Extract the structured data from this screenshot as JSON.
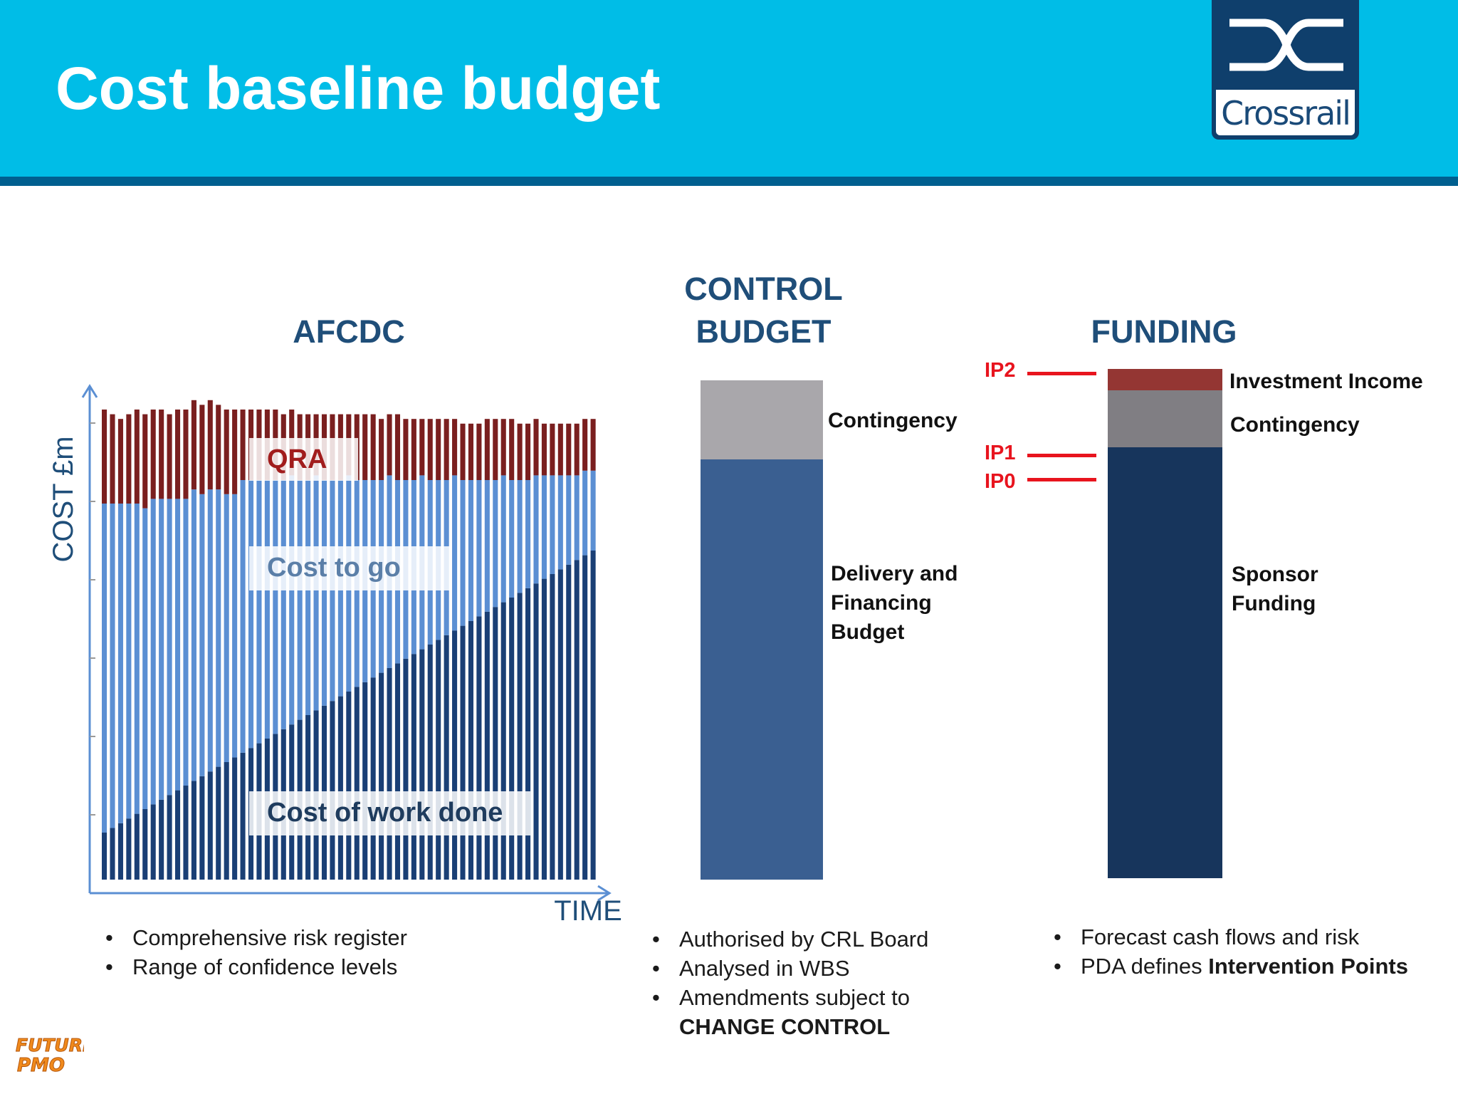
{
  "page": {
    "title": "Cost baseline budget"
  },
  "logo": {
    "text": "Crossrail"
  },
  "afcdc": {
    "heading": "AFCDC",
    "ylabel": "COST £m",
    "xlabel": "TIME",
    "labels": {
      "qra": "QRA",
      "cost_to_go": "Cost to go",
      "cost_done": "Cost of work done"
    },
    "bullets": [
      "Comprehensive risk register",
      "Range of confidence levels"
    ]
  },
  "control": {
    "heading_line1": "CONTROL",
    "heading_line2": "BUDGET",
    "contingency": "Contingency",
    "delivery_line1": "Delivery and",
    "delivery_line2": "Financing",
    "delivery_line3": "Budget",
    "bullets": [
      "Authorised by CRL Board",
      "Analysed in WBS",
      "Amendments subject to"
    ],
    "bullet_cont": "CHANGE CONTROL"
  },
  "funding": {
    "heading": "FUNDING",
    "ip2": "IP2",
    "ip1": "IP1",
    "ip0": "IP0",
    "investment": "Investment Income",
    "contingency": "Contingency",
    "sponsor_line1": "Sponsor",
    "sponsor_line2": "Funding",
    "bullet1": "Forecast cash flows and risk",
    "bullet2_prefix": "PDA defines ",
    "bullet2_bold": "Intervention Points"
  },
  "colors": {
    "header": "#00bde7",
    "heading": "#1f4e79",
    "done": "#1a3f75",
    "to_go": "#5b8fd3",
    "qra": "#7a1f1f",
    "control_delivery": "#3a5f91",
    "control_contingency": "#a9a7ab",
    "funding_sponsor": "#17355c",
    "funding_contingency": "#807e83",
    "funding_investment": "#943633",
    "ip_red": "#e8141e"
  },
  "chart_data": {
    "type": "bar",
    "title": "AFCDC",
    "ylabel": "COST £m",
    "xlabel": "TIME",
    "stacked": true,
    "bars": 61,
    "series": [
      {
        "name": "Cost of work done",
        "values": [
          10,
          11,
          12,
          13,
          14,
          15,
          16,
          17,
          18,
          19,
          20,
          21,
          22,
          23,
          24,
          25,
          26,
          27,
          28,
          29,
          30,
          31,
          32,
          33,
          34,
          35,
          36,
          37,
          38,
          39,
          40,
          41,
          42,
          43,
          44,
          45,
          46,
          47,
          48,
          49,
          50,
          51,
          52,
          53,
          54,
          55,
          56,
          57,
          58,
          59,
          60,
          61,
          62,
          63,
          64,
          65,
          66,
          67,
          68,
          69,
          70
        ]
      },
      {
        "name": "Cost to go",
        "values": [
          70,
          69,
          68,
          67,
          66,
          64,
          65,
          64,
          63,
          62,
          61,
          62,
          60,
          60,
          59,
          57,
          56,
          58,
          57,
          56,
          55,
          54,
          53,
          53,
          51,
          50,
          50,
          48,
          47,
          46,
          46,
          44,
          43,
          42,
          41,
          41,
          39,
          38,
          37,
          37,
          35,
          34,
          33,
          33,
          31,
          30,
          29,
          28,
          27,
          27,
          25,
          24,
          23,
          23,
          22,
          21,
          20,
          19,
          18,
          18,
          17
        ]
      },
      {
        "name": "QRA",
        "values": [
          20,
          19,
          18,
          19,
          20,
          20,
          19,
          19,
          18,
          19,
          19,
          19,
          19,
          19,
          18,
          18,
          18,
          15,
          15,
          15,
          15,
          15,
          14,
          14,
          14,
          14,
          13,
          14,
          14,
          14,
          13,
          14,
          14,
          14,
          13,
          13,
          14,
          13,
          13,
          12,
          13,
          13,
          13,
          12,
          12,
          12,
          12,
          13,
          13,
          12,
          13,
          12,
          12,
          12,
          11,
          11,
          11,
          11,
          11,
          11,
          11
        ]
      }
    ],
    "regions": [
      "QRA",
      "Cost to go",
      "Cost of work done"
    ]
  },
  "control_budget_chart": {
    "type": "bar",
    "stacked": true,
    "series": [
      {
        "name": "Delivery and Financing Budget",
        "value": 81
      },
      {
        "name": "Contingency",
        "value": 19
      }
    ]
  },
  "funding_chart": {
    "type": "bar",
    "stacked": true,
    "series": [
      {
        "name": "Sponsor Funding",
        "value": 83
      },
      {
        "name": "Contingency",
        "value": 13
      },
      {
        "name": "Investment Income",
        "value": 4
      }
    ],
    "intervention_points": [
      "IP2",
      "IP1",
      "IP0"
    ]
  }
}
